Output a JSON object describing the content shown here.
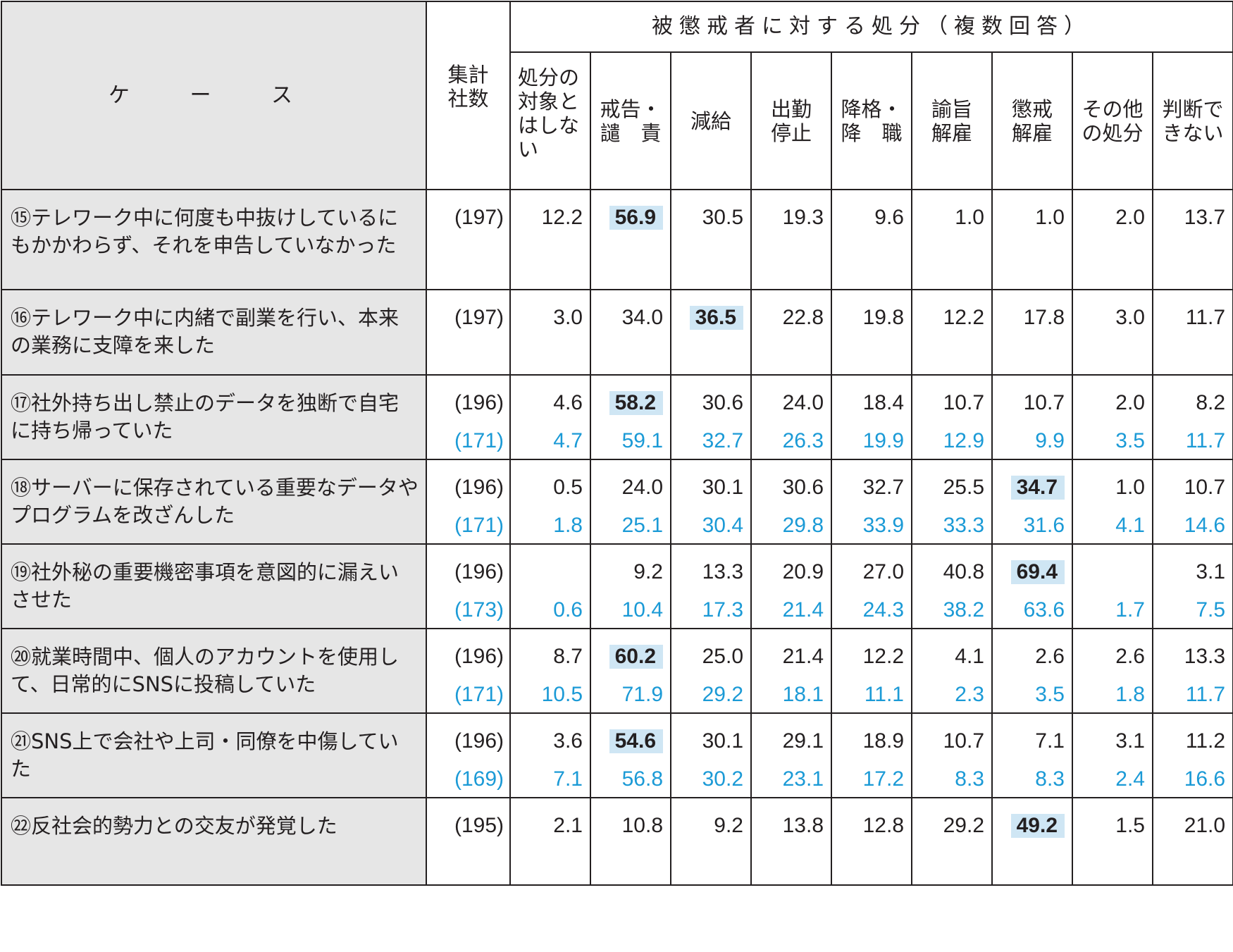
{
  "header": {
    "case": "ケ ー ス",
    "count": [
      "集計",
      "社数"
    ],
    "group": "被懲戒者に対する処分（複数回答）",
    "columns": [
      [
        "処分の",
        "対象と",
        "はしな",
        "い"
      ],
      [
        "戒告・",
        "譴　責"
      ],
      [
        "減給"
      ],
      [
        "出勤",
        "停止"
      ],
      [
        "降格・",
        "降　職"
      ],
      [
        "諭旨",
        "解雇"
      ],
      [
        "懲戒",
        "解雇"
      ],
      [
        "その他",
        "の処分"
      ],
      [
        "判断で",
        "きない"
      ]
    ]
  },
  "rows": [
    {
      "case": "⑮テレワーク中に何度も中抜けしているにもかかわらず、それを申告していなかった",
      "count": [
        "(197)"
      ],
      "values": [
        [
          "12.2"
        ],
        [
          "56.9"
        ],
        [
          "30.5"
        ],
        [
          "19.3"
        ],
        [
          "9.6"
        ],
        [
          "1.0"
        ],
        [
          "1.0"
        ],
        [
          "2.0"
        ],
        [
          "13.7"
        ]
      ],
      "highlight": 1
    },
    {
      "case": "⑯テレワーク中に内緒で副業を行い、本来の業務に支障を来した",
      "count": [
        "(197)"
      ],
      "values": [
        [
          "3.0"
        ],
        [
          "34.0"
        ],
        [
          "36.5"
        ],
        [
          "22.8"
        ],
        [
          "19.8"
        ],
        [
          "12.2"
        ],
        [
          "17.8"
        ],
        [
          "3.0"
        ],
        [
          "11.7"
        ]
      ],
      "highlight": 2
    },
    {
      "case": "⑰社外持ち出し禁止のデータを独断で自宅に持ち帰っていた",
      "count": [
        "(196)",
        "(171)"
      ],
      "values": [
        [
          "4.6",
          "4.7"
        ],
        [
          "58.2",
          "59.1"
        ],
        [
          "30.6",
          "32.7"
        ],
        [
          "24.0",
          "26.3"
        ],
        [
          "18.4",
          "19.9"
        ],
        [
          "10.7",
          "12.9"
        ],
        [
          "10.7",
          "9.9"
        ],
        [
          "2.0",
          "3.5"
        ],
        [
          "8.2",
          "11.7"
        ]
      ],
      "highlight": 1
    },
    {
      "case": "⑱サーバーに保存されている重要なデータやプログラムを改ざんした",
      "count": [
        "(196)",
        "(171)"
      ],
      "values": [
        [
          "0.5",
          "1.8"
        ],
        [
          "24.0",
          "25.1"
        ],
        [
          "30.1",
          "30.4"
        ],
        [
          "30.6",
          "29.8"
        ],
        [
          "32.7",
          "33.9"
        ],
        [
          "25.5",
          "33.3"
        ],
        [
          "34.7",
          "31.6"
        ],
        [
          "1.0",
          "4.1"
        ],
        [
          "10.7",
          "14.6"
        ]
      ],
      "highlight": 6
    },
    {
      "case": "⑲社外秘の重要機密事項を意図的に漏えいさせた",
      "count": [
        "(196)",
        "(173)"
      ],
      "values": [
        [
          "",
          "0.6"
        ],
        [
          "9.2",
          "10.4"
        ],
        [
          "13.3",
          "17.3"
        ],
        [
          "20.9",
          "21.4"
        ],
        [
          "27.0",
          "24.3"
        ],
        [
          "40.8",
          "38.2"
        ],
        [
          "69.4",
          "63.6"
        ],
        [
          "",
          "1.7"
        ],
        [
          "3.1",
          "7.5"
        ]
      ],
      "highlight": 6
    },
    {
      "case": "⑳就業時間中、個人のアカウントを使用して、日常的にSNSに投稿していた",
      "count": [
        "(196)",
        "(171)"
      ],
      "values": [
        [
          "8.7",
          "10.5"
        ],
        [
          "60.2",
          "71.9"
        ],
        [
          "25.0",
          "29.2"
        ],
        [
          "21.4",
          "18.1"
        ],
        [
          "12.2",
          "11.1"
        ],
        [
          "4.1",
          "2.3"
        ],
        [
          "2.6",
          "3.5"
        ],
        [
          "2.6",
          "1.8"
        ],
        [
          "13.3",
          "11.7"
        ]
      ],
      "highlight": 1
    },
    {
      "case": "㉑SNS上で会社や上司・同僚を中傷していた",
      "count": [
        "(196)",
        "(169)"
      ],
      "values": [
        [
          "3.6",
          "7.1"
        ],
        [
          "54.6",
          "56.8"
        ],
        [
          "30.1",
          "30.2"
        ],
        [
          "29.1",
          "23.1"
        ],
        [
          "18.9",
          "17.2"
        ],
        [
          "10.7",
          "8.3"
        ],
        [
          "7.1",
          "8.3"
        ],
        [
          "3.1",
          "2.4"
        ],
        [
          "11.2",
          "16.6"
        ]
      ],
      "highlight": 1
    },
    {
      "case": "㉒反社会的勢力との交友が発覚した",
      "count": [
        "(195)"
      ],
      "values": [
        [
          "2.1"
        ],
        [
          "10.8"
        ],
        [
          "9.2"
        ],
        [
          "13.8"
        ],
        [
          "12.8"
        ],
        [
          "29.2"
        ],
        [
          "49.2"
        ],
        [
          "1.5"
        ],
        [
          "21.0"
        ]
      ],
      "highlight": 6
    }
  ],
  "colors": {
    "highlight_bg": "#cfe6f4",
    "previous_value_text": "#1b9ad6",
    "case_bg": "#e6e6e6"
  }
}
